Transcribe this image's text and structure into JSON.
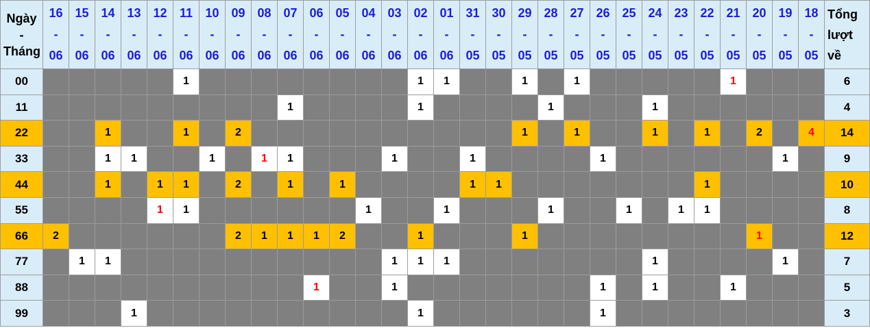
{
  "header": {
    "corner_label": "Ngày - Tháng",
    "total_label": "Tổng lượt về",
    "columns": [
      {
        "day": "16",
        "month": "06"
      },
      {
        "day": "15",
        "month": "06"
      },
      {
        "day": "14",
        "month": "06"
      },
      {
        "day": "13",
        "month": "06"
      },
      {
        "day": "12",
        "month": "06"
      },
      {
        "day": "11",
        "month": "06"
      },
      {
        "day": "10",
        "month": "06"
      },
      {
        "day": "09",
        "month": "06"
      },
      {
        "day": "08",
        "month": "06"
      },
      {
        "day": "07",
        "month": "06"
      },
      {
        "day": "06",
        "month": "06"
      },
      {
        "day": "05",
        "month": "06"
      },
      {
        "day": "04",
        "month": "06"
      },
      {
        "day": "03",
        "month": "06"
      },
      {
        "day": "02",
        "month": "06"
      },
      {
        "day": "01",
        "month": "06"
      },
      {
        "day": "31",
        "month": "05"
      },
      {
        "day": "30",
        "month": "05"
      },
      {
        "day": "29",
        "month": "05"
      },
      {
        "day": "28",
        "month": "05"
      },
      {
        "day": "27",
        "month": "05"
      },
      {
        "day": "26",
        "month": "05"
      },
      {
        "day": "25",
        "month": "05"
      },
      {
        "day": "24",
        "month": "05"
      },
      {
        "day": "23",
        "month": "05"
      },
      {
        "day": "22",
        "month": "05"
      },
      {
        "day": "21",
        "month": "05"
      },
      {
        "day": "20",
        "month": "05"
      },
      {
        "day": "19",
        "month": "05"
      },
      {
        "day": "18",
        "month": "05"
      }
    ],
    "dash": "-"
  },
  "rows": [
    {
      "label": "00",
      "highlight": false,
      "total": "6",
      "cells": [
        null,
        null,
        null,
        null,
        null,
        {
          "v": "1"
        },
        null,
        null,
        null,
        null,
        null,
        null,
        null,
        null,
        {
          "v": "1"
        },
        {
          "v": "1"
        },
        null,
        null,
        {
          "v": "1"
        },
        null,
        {
          "v": "1"
        },
        null,
        null,
        null,
        null,
        null,
        {
          "v": "1",
          "red": true
        },
        null,
        null,
        null
      ]
    },
    {
      "label": "11",
      "highlight": false,
      "total": "4",
      "cells": [
        null,
        null,
        null,
        null,
        null,
        null,
        null,
        null,
        null,
        {
          "v": "1"
        },
        null,
        null,
        null,
        null,
        {
          "v": "1"
        },
        null,
        null,
        null,
        null,
        {
          "v": "1"
        },
        null,
        null,
        null,
        {
          "v": "1"
        },
        null,
        null,
        null,
        null,
        null,
        null
      ]
    },
    {
      "label": "22",
      "highlight": true,
      "total": "14",
      "cells": [
        null,
        null,
        {
          "v": "1"
        },
        null,
        null,
        {
          "v": "1"
        },
        null,
        {
          "v": "2"
        },
        null,
        null,
        null,
        null,
        null,
        null,
        null,
        null,
        null,
        null,
        {
          "v": "1"
        },
        null,
        {
          "v": "1"
        },
        null,
        null,
        {
          "v": "1"
        },
        null,
        {
          "v": "1"
        },
        null,
        {
          "v": "2"
        },
        null,
        {
          "v": "4",
          "red": true
        }
      ]
    },
    {
      "label": "33",
      "highlight": false,
      "total": "9",
      "cells": [
        null,
        null,
        {
          "v": "1"
        },
        {
          "v": "1"
        },
        null,
        null,
        {
          "v": "1"
        },
        null,
        {
          "v": "1",
          "red": true
        },
        {
          "v": "1"
        },
        null,
        null,
        null,
        {
          "v": "1"
        },
        null,
        null,
        {
          "v": "1"
        },
        null,
        null,
        null,
        null,
        {
          "v": "1"
        },
        null,
        null,
        null,
        null,
        null,
        null,
        {
          "v": "1"
        },
        null
      ]
    },
    {
      "label": "44",
      "highlight": true,
      "total": "10",
      "cells": [
        null,
        null,
        {
          "v": "1"
        },
        null,
        {
          "v": "1"
        },
        {
          "v": "1"
        },
        null,
        {
          "v": "2"
        },
        null,
        {
          "v": "1"
        },
        null,
        {
          "v": "1"
        },
        null,
        null,
        null,
        null,
        {
          "v": "1"
        },
        {
          "v": "1"
        },
        null,
        null,
        null,
        null,
        null,
        null,
        null,
        {
          "v": "1"
        },
        null,
        null,
        null,
        null
      ]
    },
    {
      "label": "55",
      "highlight": false,
      "total": "8",
      "cells": [
        null,
        null,
        null,
        null,
        {
          "v": "1",
          "red": true
        },
        {
          "v": "1"
        },
        null,
        null,
        null,
        null,
        null,
        null,
        {
          "v": "1"
        },
        null,
        null,
        {
          "v": "1"
        },
        null,
        null,
        null,
        {
          "v": "1"
        },
        null,
        null,
        {
          "v": "1"
        },
        null,
        {
          "v": "1"
        },
        {
          "v": "1"
        },
        null,
        null,
        null,
        null
      ]
    },
    {
      "label": "66",
      "highlight": true,
      "total": "12",
      "cells": [
        {
          "v": "2"
        },
        null,
        null,
        null,
        null,
        null,
        null,
        {
          "v": "2"
        },
        {
          "v": "1"
        },
        {
          "v": "1"
        },
        {
          "v": "1"
        },
        {
          "v": "2"
        },
        null,
        null,
        {
          "v": "1"
        },
        null,
        null,
        null,
        {
          "v": "1"
        },
        null,
        null,
        null,
        null,
        null,
        null,
        null,
        null,
        {
          "v": "1",
          "red": true
        },
        null,
        null
      ]
    },
    {
      "label": "77",
      "highlight": false,
      "total": "7",
      "cells": [
        null,
        {
          "v": "1"
        },
        {
          "v": "1"
        },
        null,
        null,
        null,
        null,
        null,
        null,
        null,
        null,
        null,
        null,
        {
          "v": "1"
        },
        {
          "v": "1"
        },
        {
          "v": "1"
        },
        null,
        null,
        null,
        null,
        null,
        null,
        null,
        {
          "v": "1"
        },
        null,
        null,
        null,
        null,
        {
          "v": "1"
        },
        null
      ]
    },
    {
      "label": "88",
      "highlight": false,
      "total": "5",
      "cells": [
        null,
        null,
        null,
        null,
        null,
        null,
        null,
        null,
        null,
        null,
        {
          "v": "1",
          "red": true
        },
        null,
        null,
        {
          "v": "1"
        },
        null,
        null,
        null,
        null,
        null,
        null,
        null,
        {
          "v": "1"
        },
        null,
        {
          "v": "1"
        },
        null,
        null,
        {
          "v": "1"
        },
        null,
        null,
        null
      ]
    },
    {
      "label": "99",
      "highlight": false,
      "total": "3",
      "cells": [
        null,
        null,
        null,
        {
          "v": "1"
        },
        null,
        null,
        null,
        null,
        null,
        null,
        null,
        null,
        null,
        null,
        {
          "v": "1"
        },
        null,
        null,
        null,
        null,
        null,
        null,
        {
          "v": "1"
        },
        null,
        null,
        null,
        null,
        null,
        null,
        null,
        null
      ]
    }
  ],
  "colors": {
    "header_bg": "#d9edf8",
    "header_text": "#1c1ce0",
    "empty_bg": "#808080",
    "highlight_bg": "#ffc000",
    "value_bg": "#ffffff",
    "red_text": "#ff0000",
    "text": "#000000",
    "border": "#9c9c9c"
  },
  "layout": {
    "label_col_width": 62,
    "date_col_width": 38,
    "total_col_width": 66
  }
}
